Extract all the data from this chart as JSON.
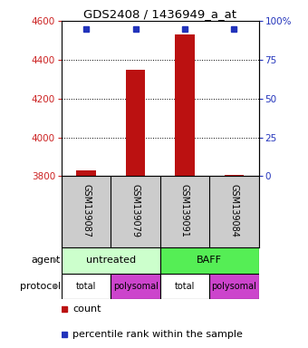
{
  "title": "GDS2408 / 1436949_a_at",
  "samples": [
    "GSM139087",
    "GSM139079",
    "GSM139091",
    "GSM139084"
  ],
  "bar_values": [
    3832,
    4348,
    4528,
    3807
  ],
  "ylim_left": [
    3800,
    4600
  ],
  "ylim_right": [
    0,
    100
  ],
  "yticks_left": [
    3800,
    4000,
    4200,
    4400,
    4600
  ],
  "yticks_right": [
    0,
    25,
    50,
    75,
    100
  ],
  "ytick_labels_right": [
    "0",
    "25",
    "50",
    "75",
    "100%"
  ],
  "bar_color": "#bb1111",
  "dot_color": "#2233bb",
  "agent_labels": [
    "untreated",
    "BAFF"
  ],
  "agent_colors": [
    "#ccffcc",
    "#55ee55"
  ],
  "protocol_labels": [
    "total",
    "polysomal",
    "total",
    "polysomal"
  ],
  "protocol_colors": [
    "#ffffff",
    "#cc44cc",
    "#ffffff",
    "#cc44cc"
  ],
  "bg_color": "#cccccc",
  "left_tick_color": "#cc2222",
  "right_tick_color": "#2233bb",
  "bar_width": 0.4
}
